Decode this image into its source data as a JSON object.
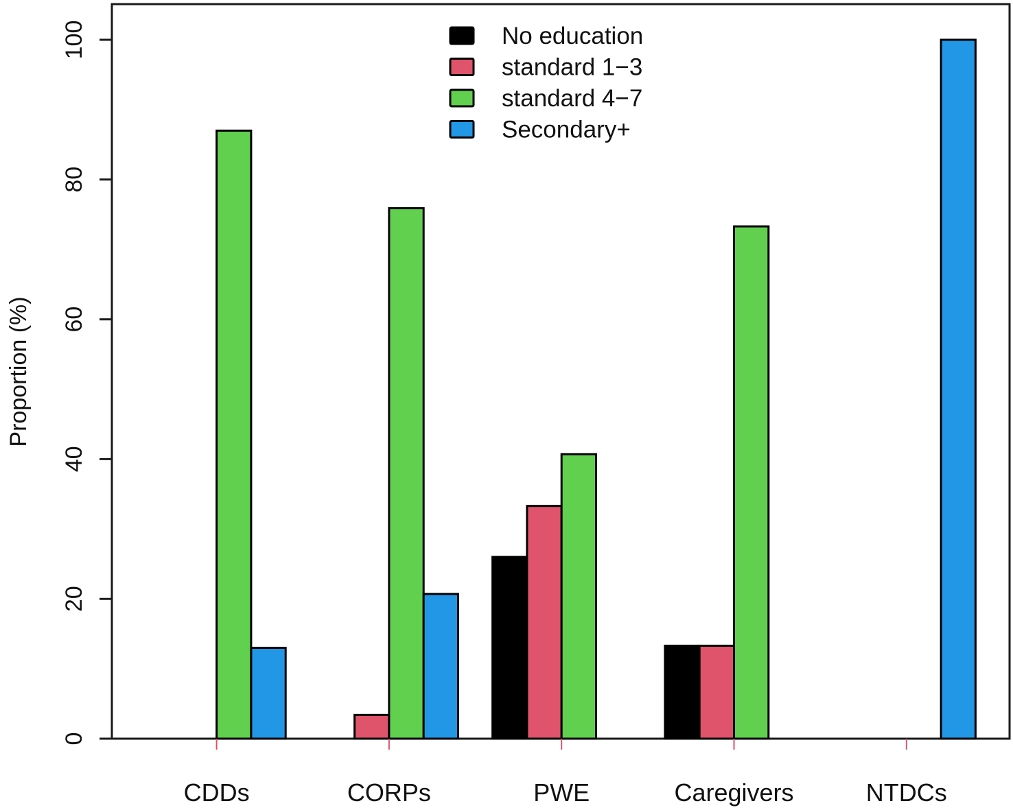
{
  "chart_data": {
    "type": "bar",
    "title": "",
    "xlabel": "",
    "ylabel": "Proportion (%)",
    "ylim": [
      0,
      100
    ],
    "yticks": [
      0,
      20,
      40,
      60,
      80,
      100
    ],
    "grid": false,
    "legend_position": "top-center",
    "categories": [
      "CDDs",
      "CORPs",
      "PWE",
      "Caregivers",
      "NTDCs"
    ],
    "series": [
      {
        "name": "No education",
        "color": "#000000",
        "values": [
          0,
          0,
          26.0,
          13.3,
          0
        ]
      },
      {
        "name": "standard 1−3",
        "color": "#DF536B",
        "values": [
          0,
          3.4,
          33.3,
          13.3,
          0
        ]
      },
      {
        "name": "standard 4−7",
        "color": "#61D04F",
        "values": [
          87.0,
          75.9,
          40.7,
          73.3,
          0
        ]
      },
      {
        "name": "Secondary+",
        "color": "#2297E6",
        "values": [
          13.0,
          20.7,
          0,
          0,
          100
        ]
      }
    ]
  }
}
